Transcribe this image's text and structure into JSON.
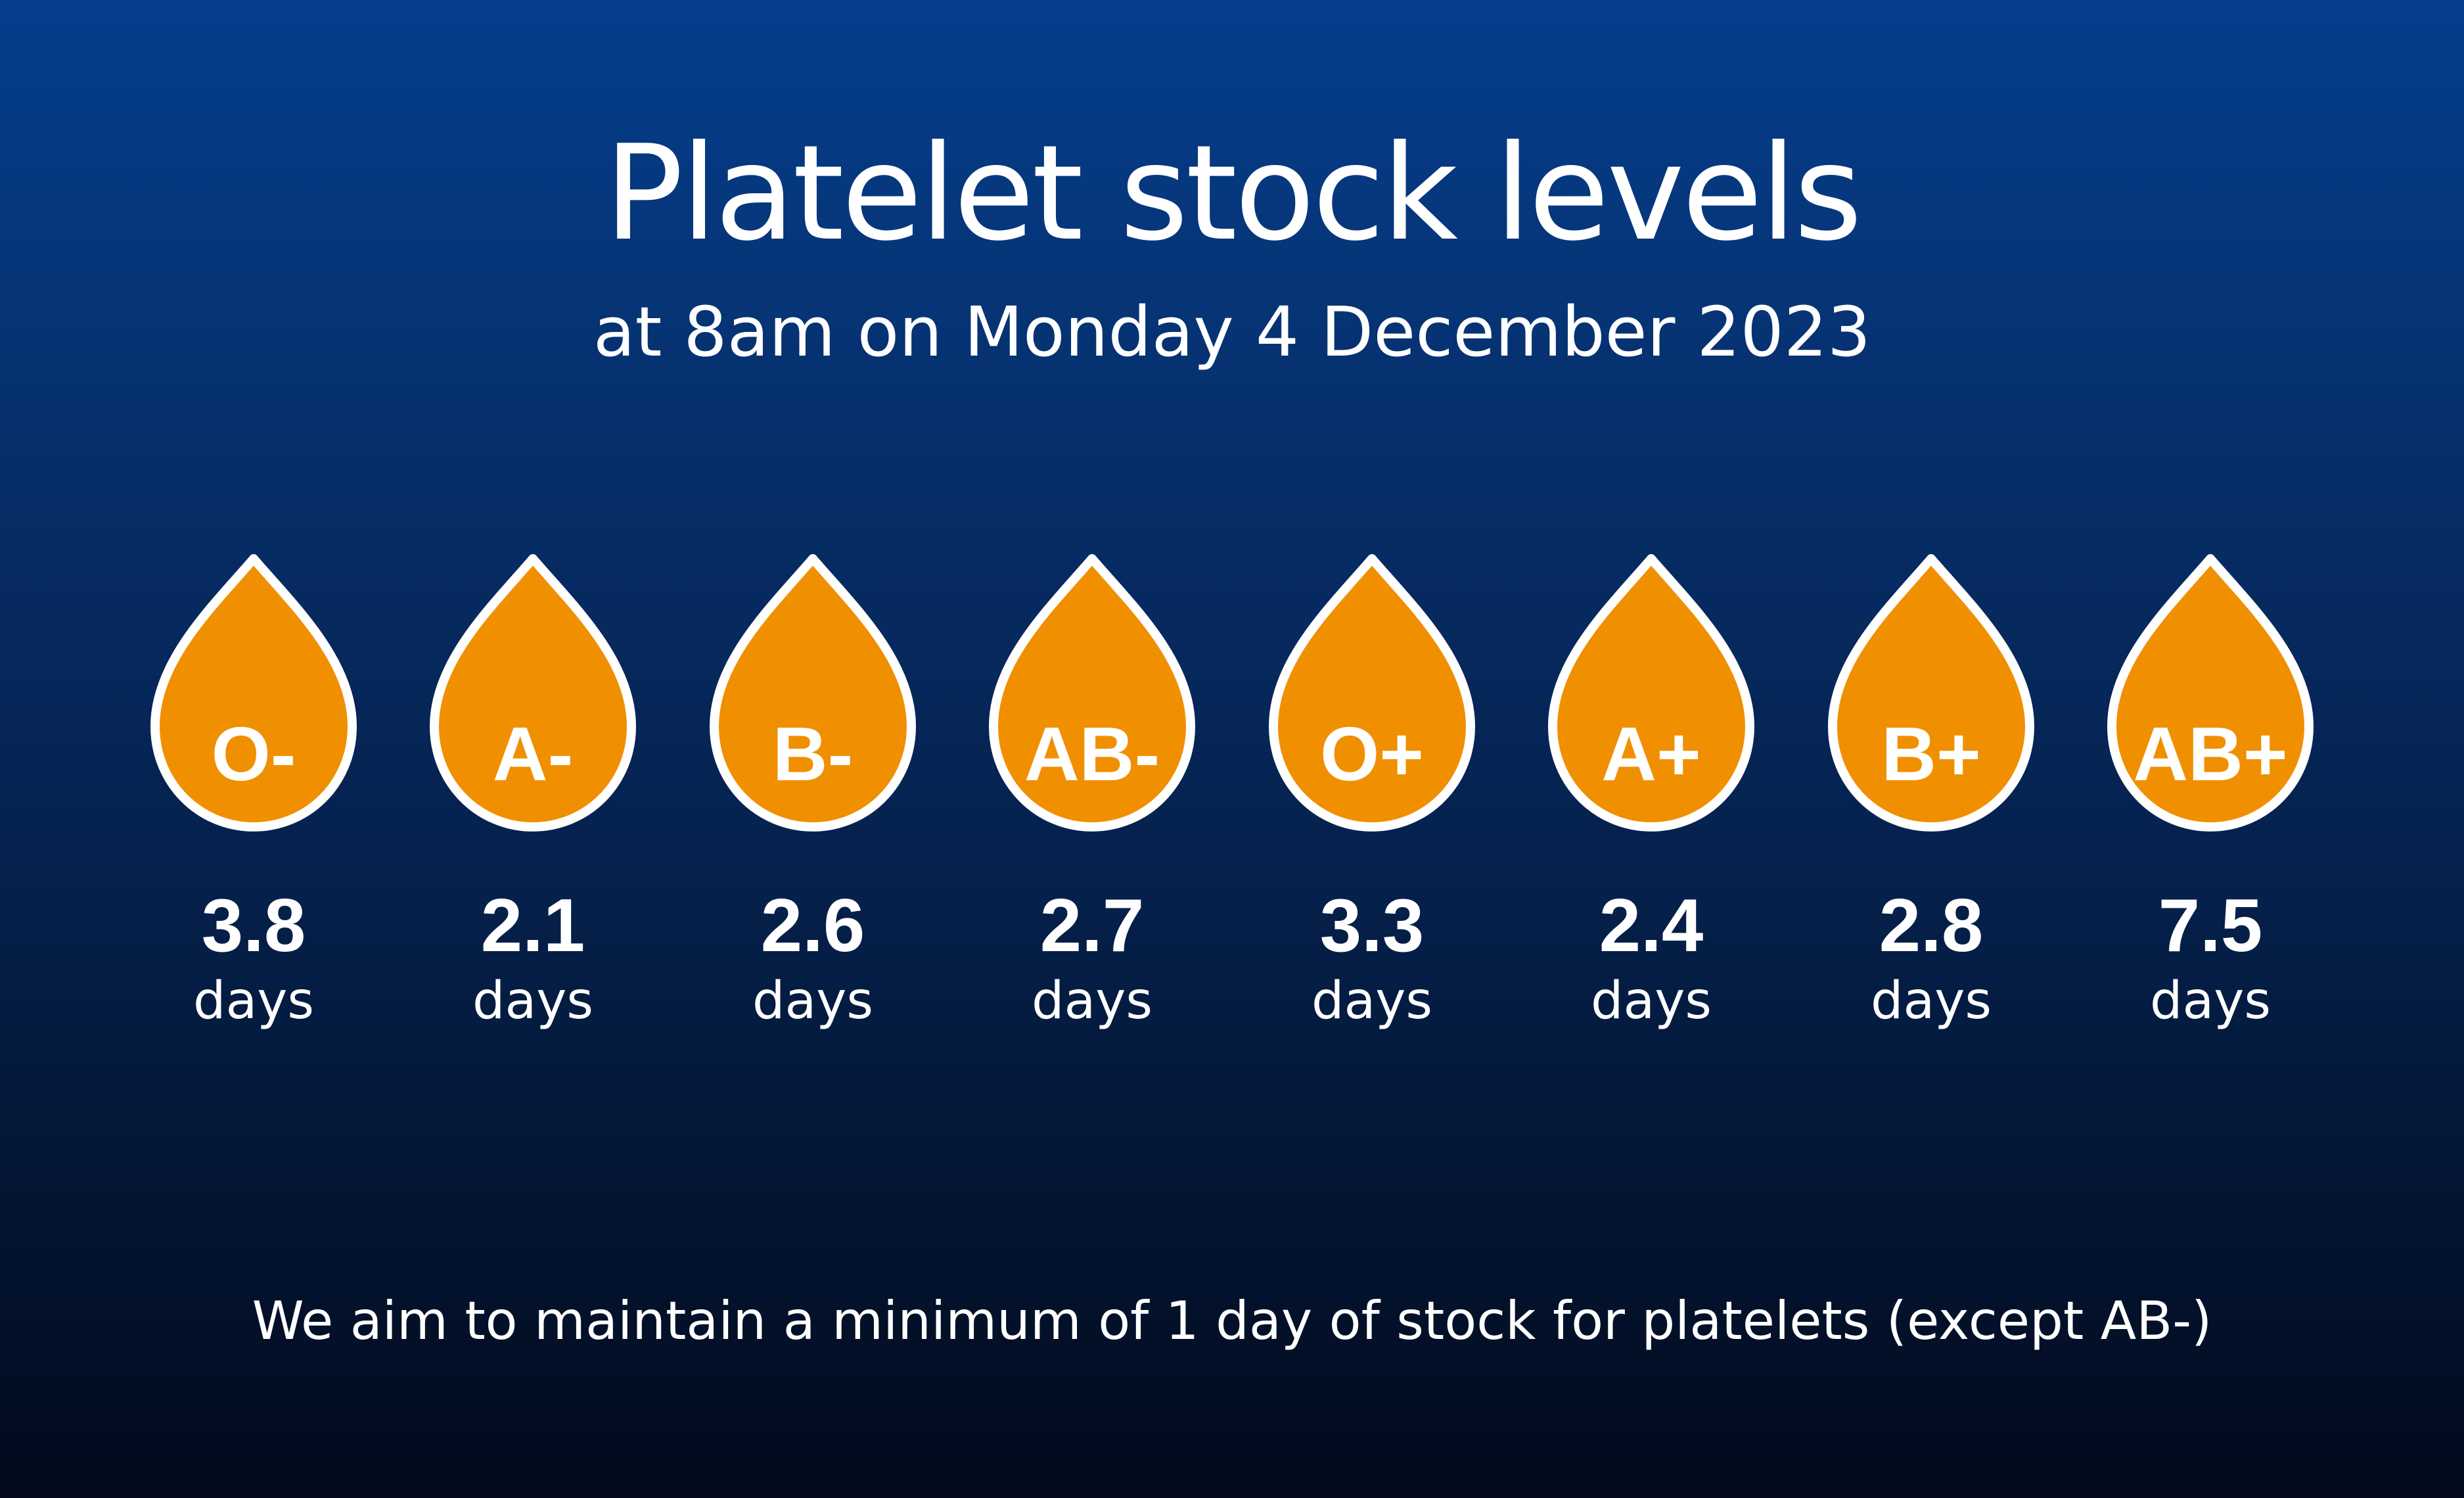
{
  "title": "Platelet stock levels",
  "subtitle": "at 8am on Monday 4 December 2023",
  "drop_color": "#f08f00",
  "drop_outline_color": "#ffffff",
  "stock": [
    {
      "blood_type": "O-",
      "value": "3.8",
      "unit": "days"
    },
    {
      "blood_type": "A-",
      "value": "2.1",
      "unit": "days"
    },
    {
      "blood_type": "B-",
      "value": "2.6",
      "unit": "days"
    },
    {
      "blood_type": "AB-",
      "value": "2.7",
      "unit": "days"
    },
    {
      "blood_type": "O+",
      "value": "3.3",
      "unit": "days"
    },
    {
      "blood_type": "A+",
      "value": "2.4",
      "unit": "days"
    },
    {
      "blood_type": "B+",
      "value": "2.8",
      "unit": "days"
    },
    {
      "blood_type": "AB+",
      "value": "7.5",
      "unit": "days"
    }
  ],
  "footnote": "We aim to maintain a minimum of 1 day of stock for platelets (except AB-)"
}
